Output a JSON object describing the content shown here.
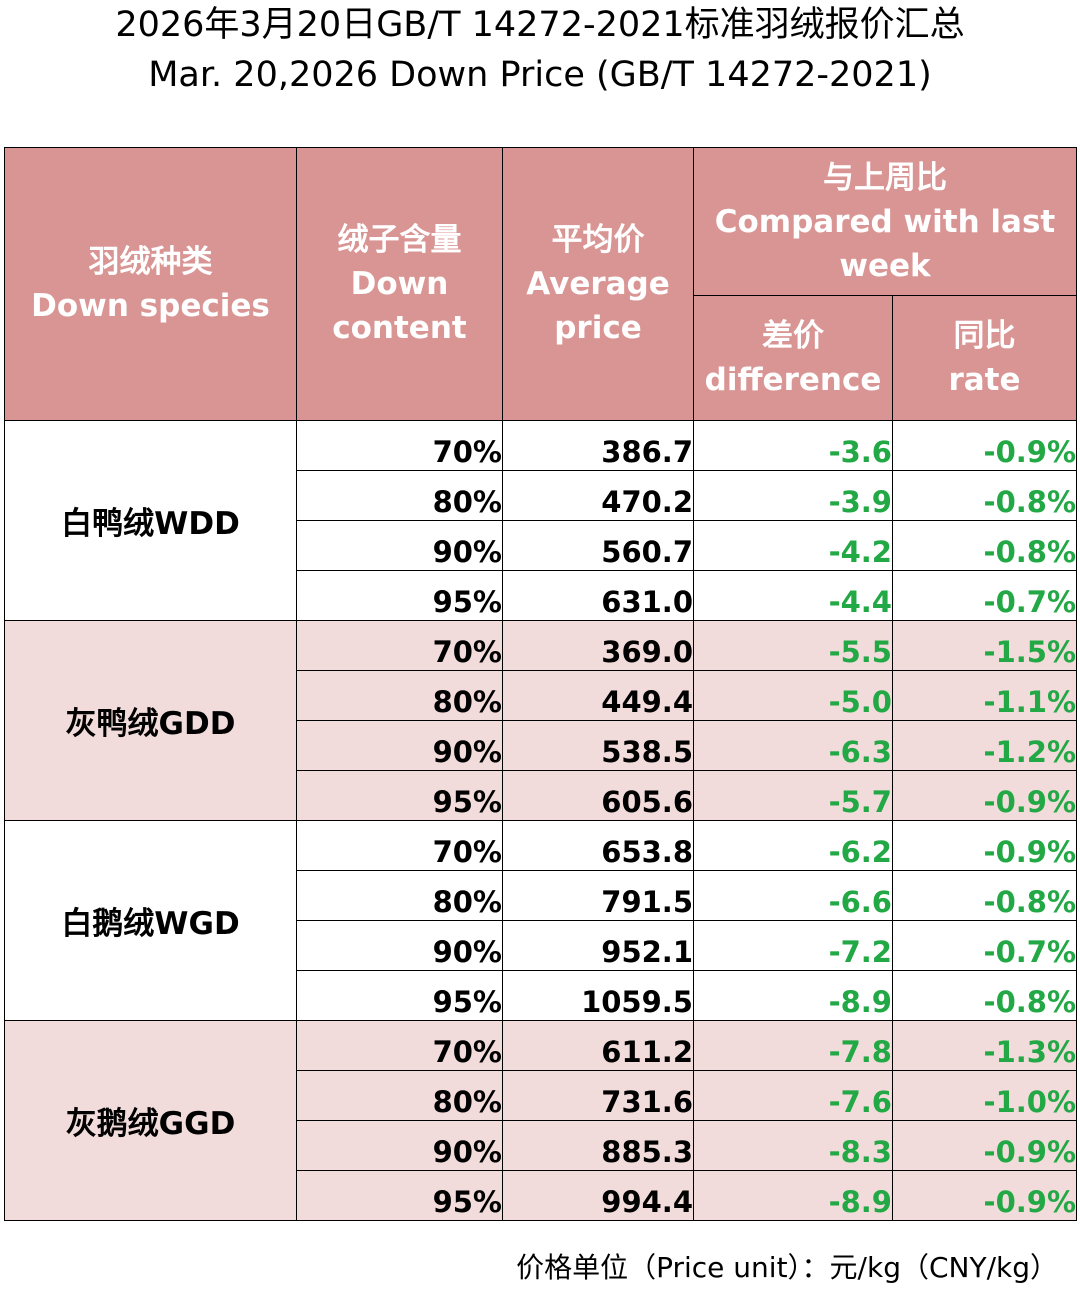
{
  "title_cn": "2026年3月20日GB/T 14272-2021标准羽绒报价汇总",
  "title_en": "Mar. 20,2026 Down Price (GB/T 14272-2021)",
  "header": {
    "species_cn": "羽绒种类",
    "species_en": "Down species",
    "content_cn": "绒子含量",
    "content_en_1": "Down",
    "content_en_2": "content",
    "price_cn": "平均价",
    "price_en_1": "Average",
    "price_en_2": "price",
    "compare_cn": "与上周比",
    "compare_en_1": "Compared with last",
    "compare_en_2": "week",
    "diff_cn": "差价",
    "diff_en": "difference",
    "rate_cn": "同比",
    "rate_en": "rate"
  },
  "groups": [
    {
      "species": "白鸭绒WDD",
      "rows": [
        {
          "content": "70%",
          "price": "386.7",
          "diff": "-3.6",
          "rate": "-0.9%"
        },
        {
          "content": "80%",
          "price": "470.2",
          "diff": "-3.9",
          "rate": "-0.8%"
        },
        {
          "content": "90%",
          "price": "560.7",
          "diff": "-4.2",
          "rate": "-0.8%"
        },
        {
          "content": "95%",
          "price": "631.0",
          "diff": "-4.4",
          "rate": "-0.7%"
        }
      ]
    },
    {
      "species": "灰鸭绒GDD",
      "rows": [
        {
          "content": "70%",
          "price": "369.0",
          "diff": "-5.5",
          "rate": "-1.5%"
        },
        {
          "content": "80%",
          "price": "449.4",
          "diff": "-5.0",
          "rate": "-1.1%"
        },
        {
          "content": "90%",
          "price": "538.5",
          "diff": "-6.3",
          "rate": "-1.2%"
        },
        {
          "content": "95%",
          "price": "605.6",
          "diff": "-5.7",
          "rate": "-0.9%"
        }
      ]
    },
    {
      "species": "白鹅绒WGD",
      "rows": [
        {
          "content": "70%",
          "price": "653.8",
          "diff": "-6.2",
          "rate": "-0.9%"
        },
        {
          "content": "80%",
          "price": "791.5",
          "diff": "-6.6",
          "rate": "-0.8%"
        },
        {
          "content": "90%",
          "price": "952.1",
          "diff": "-7.2",
          "rate": "-0.7%"
        },
        {
          "content": "95%",
          "price": "1059.5",
          "diff": "-8.9",
          "rate": "-0.8%"
        }
      ]
    },
    {
      "species": "灰鹅绒GGD",
      "rows": [
        {
          "content": "70%",
          "price": "611.2",
          "diff": "-7.8",
          "rate": "-1.3%"
        },
        {
          "content": "80%",
          "price": "731.6",
          "diff": "-7.6",
          "rate": "-1.0%"
        },
        {
          "content": "90%",
          "price": "885.3",
          "diff": "-8.3",
          "rate": "-0.9%"
        },
        {
          "content": "95%",
          "price": "994.4",
          "diff": "-8.9",
          "rate": "-0.9%"
        }
      ]
    }
  ],
  "unit_note": "价格单位（Price unit）：元/kg（CNY/kg）",
  "colors": {
    "header_bg": "#d99594",
    "header_text": "#ffffff",
    "shaded_row": "#f2dcdb",
    "change_text": "#22a845"
  }
}
